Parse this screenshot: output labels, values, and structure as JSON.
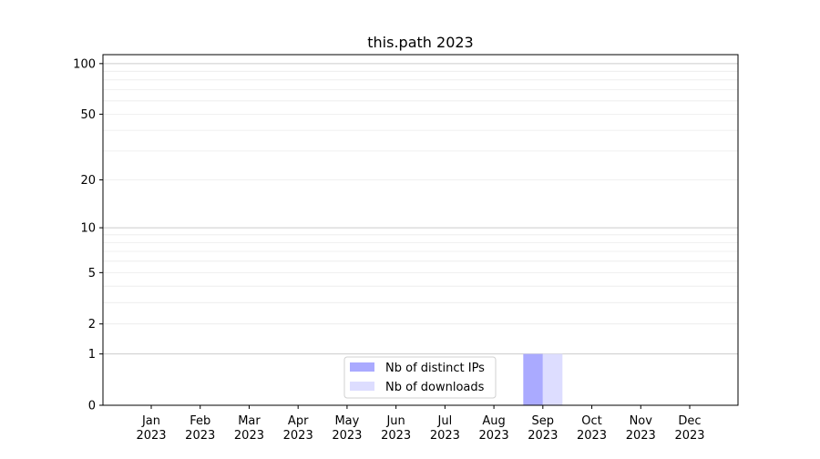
{
  "chart_data": {
    "type": "bar",
    "title": "this.path 2023",
    "xlabel": "",
    "ylabel": "",
    "y_scale": "log(1+y)",
    "ylim": [
      0,
      113
    ],
    "y_ticks": [
      0,
      1,
      2,
      5,
      10,
      20,
      50,
      100
    ],
    "grid": true,
    "legend_placement": "lower-center",
    "categories": [
      "Jan\n2023",
      "Feb\n2023",
      "Mar\n2023",
      "Apr\n2023",
      "May\n2023",
      "Jun\n2023",
      "Jul\n2023",
      "Aug\n2023",
      "Sep\n2023",
      "Oct\n2023",
      "Nov\n2023",
      "Dec\n2023"
    ],
    "series": [
      {
        "name": "Nb of distinct IPs",
        "color": "#aaaaff",
        "values": [
          0,
          0,
          0,
          0,
          0,
          0,
          0,
          0,
          1,
          0,
          0,
          0
        ]
      },
      {
        "name": "Nb of downloads",
        "color": "#ddddff",
        "values": [
          0,
          0,
          0,
          0,
          0,
          0,
          0,
          0,
          1,
          0,
          0,
          0
        ]
      }
    ]
  }
}
